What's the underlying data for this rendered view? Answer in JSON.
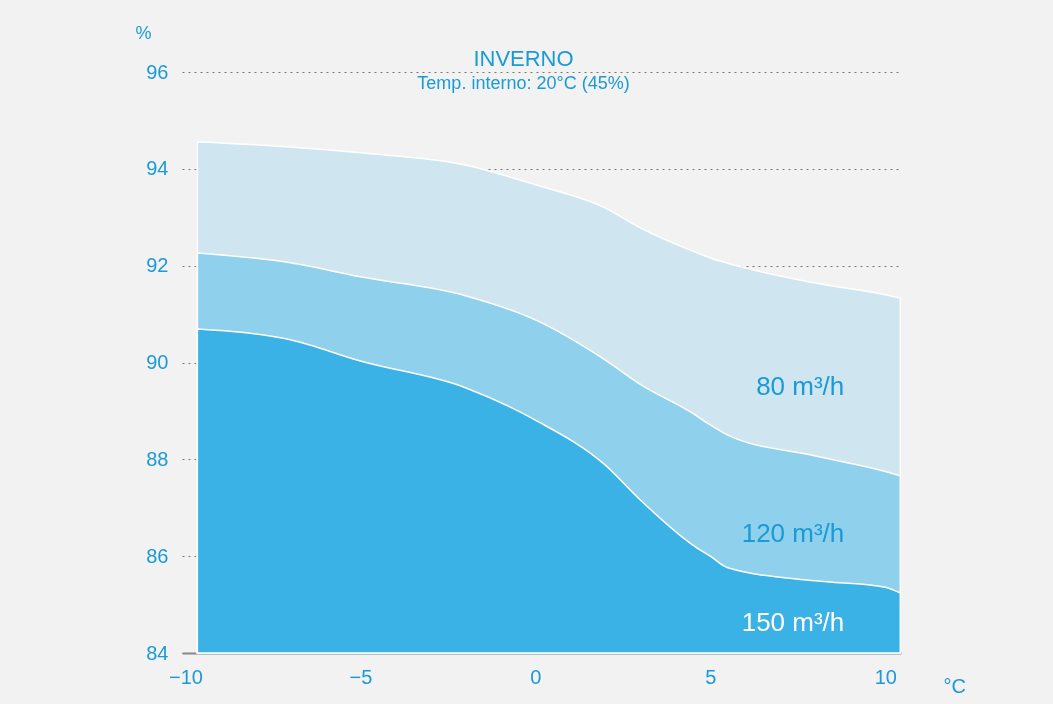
{
  "chart_data": {
    "type": "area",
    "title": "INVERNO",
    "subtitle": "Temp. interno: 20°C (45%)",
    "xlabel": "°C",
    "ylabel": "%",
    "x": [
      -9.66,
      -7,
      -5,
      -2,
      0,
      2,
      3,
      4.5,
      5,
      5.5,
      8,
      10,
      10.43
    ],
    "series": [
      {
        "name": "80 m³/h",
        "color": "#cfe6f0",
        "values": [
          94.56,
          94.45,
          94.33,
          94.08,
          93.67,
          93.19,
          92.78,
          92.3,
          92.16,
          92.05,
          91.64,
          91.4,
          91.33
        ]
      },
      {
        "name": "120 m³/h",
        "color": "#8fd0ec",
        "values": [
          92.26,
          92.06,
          91.77,
          91.38,
          90.88,
          90.05,
          89.55,
          88.95,
          88.71,
          88.5,
          88.07,
          87.75,
          87.66
        ]
      },
      {
        "name": "150 m³/h",
        "color": "#3ab2e6",
        "values": [
          90.69,
          90.47,
          90.03,
          89.48,
          88.81,
          87.88,
          87.16,
          86.23,
          86.0,
          85.76,
          85.49,
          85.36,
          85.24
        ]
      }
    ],
    "xlim": [
      -10.1,
      10.45
    ],
    "xticks": [
      -10,
      -5,
      0,
      5,
      10
    ],
    "ylim": [
      84,
      96
    ],
    "yticks": [
      84,
      86,
      88,
      90,
      92,
      94,
      96
    ],
    "grid": "y"
  }
}
